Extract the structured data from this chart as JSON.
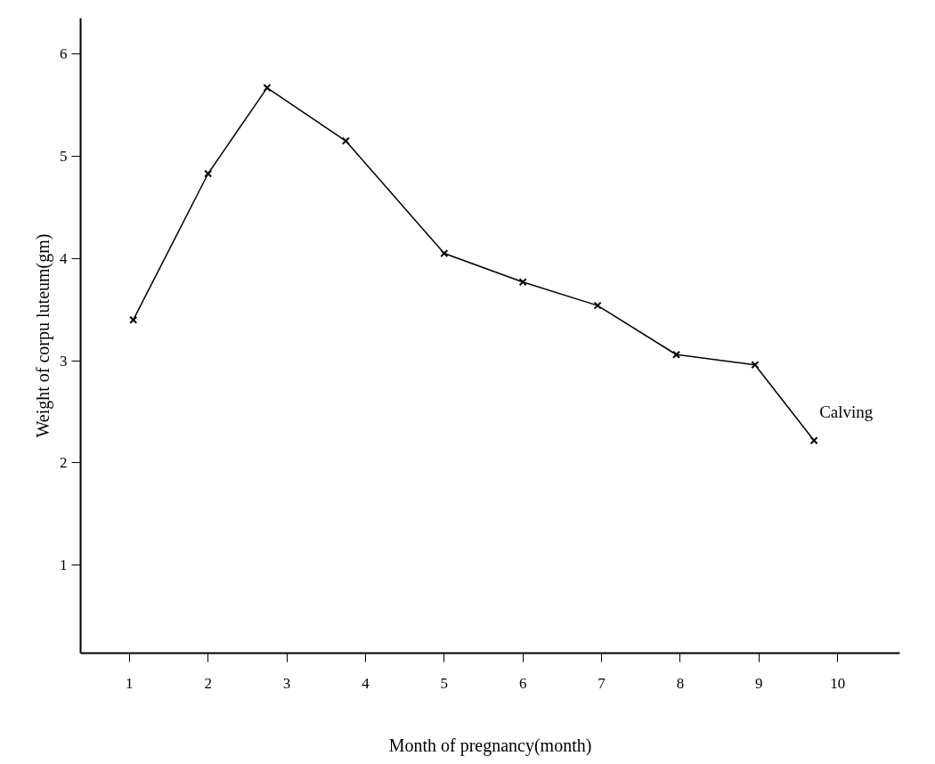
{
  "chart_data": {
    "type": "line",
    "xlabel": "Month of pregnancy(month)",
    "ylabel": "Weight of corpu luteum(gm)",
    "x": [
      1.05,
      2,
      2.75,
      3.75,
      5,
      6,
      6.95,
      7.95,
      8.95,
      9.7
    ],
    "values": [
      3.4,
      4.83,
      5.67,
      5.15,
      4.05,
      3.77,
      3.54,
      3.06,
      2.96,
      2.22
    ],
    "color": "#000000",
    "marker": "cross",
    "line_style": "solid",
    "grid": false,
    "xlim": [
      0.38,
      10.79
    ],
    "xticks": [
      1,
      2,
      3,
      4,
      5,
      6,
      7,
      8,
      9,
      10
    ],
    "ylim": [
      0.14,
      6.35
    ],
    "yticks": [
      1,
      2,
      3,
      4,
      5,
      6
    ],
    "annotations": [
      {
        "text": "Calving",
        "x": 9.7,
        "y": 2.22
      }
    ]
  }
}
